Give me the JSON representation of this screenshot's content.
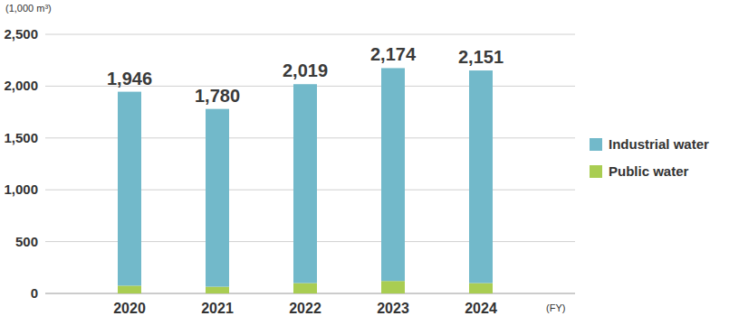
{
  "chart_data": {
    "type": "bar",
    "stacked": true,
    "y_label": "(1,000 m³)",
    "x_label": "(FY)",
    "categories": [
      "2020",
      "2021",
      "2022",
      "2023",
      "2024"
    ],
    "series": [
      {
        "name": "Industrial water",
        "color": "#72b9ca",
        "values": [
          1871,
          1715,
          1919,
          2054,
          2051
        ]
      },
      {
        "name": "Public water",
        "color": "#a9cd52",
        "values": [
          75,
          65,
          100,
          120,
          100
        ]
      }
    ],
    "totals": [
      1946,
      1780,
      2019,
      2174,
      2151
    ],
    "total_labels": [
      "1,946",
      "1,780",
      "2,019",
      "2,174",
      "2,151"
    ],
    "ylim": [
      0,
      2500
    ],
    "yticks": [
      0,
      500,
      {
        "value": 1000,
        "label": "1,000"
      },
      {
        "value": 1500,
        "label": "1,500"
      },
      {
        "value": 2000,
        "label": "2,000"
      },
      {
        "value": 2500,
        "label": "2,500"
      }
    ],
    "grid": true,
    "legend": "right"
  }
}
